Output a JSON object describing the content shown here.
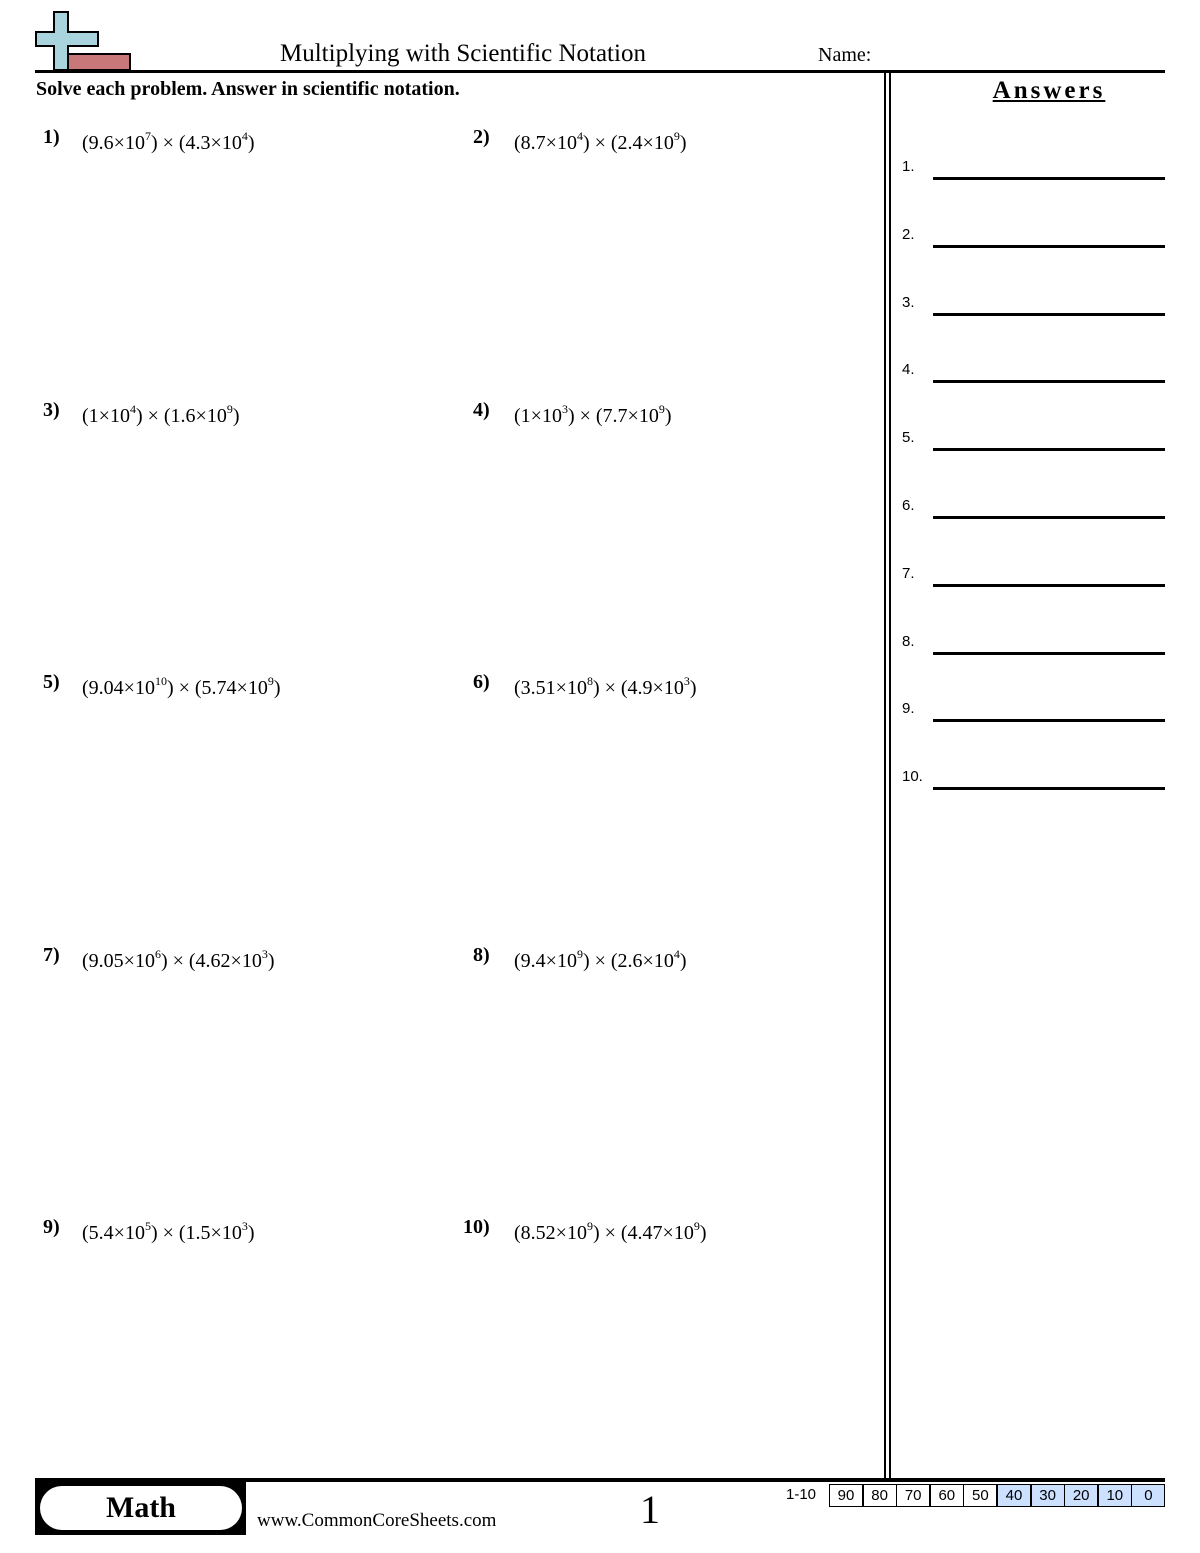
{
  "header": {
    "title": "Multiplying with Scientific Notation",
    "name_label": "Name:",
    "logo_icon": "plus-sign-logo",
    "colors": {
      "logo_plus": "#a9d3dd",
      "logo_bar": "#c87878"
    }
  },
  "instructions": "Solve each problem. Answer in scientific notation.",
  "problems": [
    {
      "num": "1)",
      "a": "9.6",
      "ae": "7",
      "b": "4.3",
      "be": "4"
    },
    {
      "num": "2)",
      "a": "8.7",
      "ae": "4",
      "b": "2.4",
      "be": "9"
    },
    {
      "num": "3)",
      "a": "1",
      "ae": "4",
      "b": "1.6",
      "be": "9"
    },
    {
      "num": "4)",
      "a": "1",
      "ae": "3",
      "b": "7.7",
      "be": "9"
    },
    {
      "num": "5)",
      "a": "9.04",
      "ae": "10",
      "b": "5.74",
      "be": "9"
    },
    {
      "num": "6)",
      "a": "3.51",
      "ae": "8",
      "b": "4.9",
      "be": "3"
    },
    {
      "num": "7)",
      "a": "9.05",
      "ae": "6",
      "b": "4.62",
      "be": "3"
    },
    {
      "num": "8)",
      "a": "9.4",
      "ae": "9",
      "b": "2.6",
      "be": "4"
    },
    {
      "num": "9)",
      "a": "5.4",
      "ae": "5",
      "b": "1.5",
      "be": "3"
    },
    {
      "num": "10)",
      "a": "8.52",
      "ae": "9",
      "b": "4.47",
      "be": "9"
    }
  ],
  "answers": {
    "title": "Answers",
    "labels": [
      "1.",
      "2.",
      "3.",
      "4.",
      "5.",
      "6.",
      "7.",
      "8.",
      "9.",
      "10."
    ]
  },
  "footer": {
    "subject": "Math",
    "url": "www.CommonCoreSheets.com",
    "page_number": "1",
    "score_label": "1-10",
    "scores": [
      "90",
      "80",
      "70",
      "60",
      "50",
      "40",
      "30",
      "20",
      "10",
      "0"
    ],
    "highlight_color": "#cce0ff",
    "highlighted_scores": [
      "40",
      "30",
      "20",
      "10",
      "0"
    ]
  }
}
